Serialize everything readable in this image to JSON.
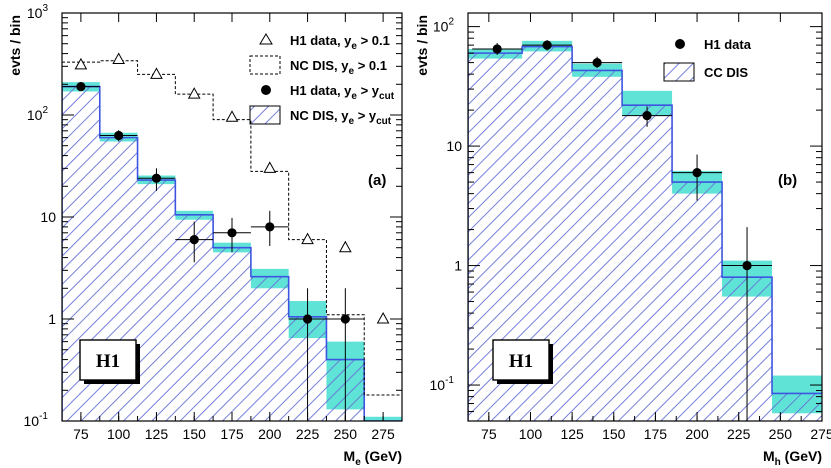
{
  "chart_data": [
    {
      "type": "histogram",
      "panel_label": "(a)",
      "badge": "H1",
      "xlabel": "M",
      "xlabel_sub": "e",
      "xlabel_unit": " (GeV)",
      "ylabel": "evts / bin",
      "xlim": [
        62.5,
        287.5
      ],
      "ylim": [
        0.1,
        1000
      ],
      "yscale": "log",
      "x_ticks": [
        75,
        100,
        125,
        150,
        175,
        200,
        225,
        250,
        275
      ],
      "y_tick_labels": [
        {
          "value": 1000,
          "base": "10",
          "exp": "3"
        },
        {
          "value": 100,
          "base": "10",
          "exp": "2"
        },
        {
          "value": 10,
          "base": "10",
          "exp": ""
        },
        {
          "value": 1,
          "base": "1",
          "exp": ""
        },
        {
          "value": 0.1,
          "base": "10",
          "exp": "-1"
        }
      ],
      "bin_edges": [
        62.5,
        87.5,
        112.5,
        137.5,
        162.5,
        187.5,
        212.5,
        237.5,
        262.5,
        287.5
      ],
      "nc_dis_ycut": [
        190,
        60,
        23,
        10.5,
        5,
        2.6,
        1.05,
        0.4,
        0.1
      ],
      "nc_dis_ycut_band": [
        [
          170,
          210
        ],
        [
          55,
          67
        ],
        [
          21,
          25.5
        ],
        [
          9.4,
          11.5
        ],
        [
          4.5,
          5.6
        ],
        [
          2.0,
          3.1
        ],
        [
          0.65,
          1.5
        ],
        [
          0.13,
          0.6
        ],
        [
          0.09,
          0.11
        ]
      ],
      "nc_dis_ye01": [
        330,
        340,
        250,
        160,
        90,
        28,
        6,
        1.1,
        0.18
      ],
      "h1_data_ye01": {
        "x": [
          75,
          100,
          125,
          150,
          175,
          200,
          225,
          250,
          275
        ],
        "y": [
          310,
          350,
          250,
          160,
          95,
          30,
          6,
          5,
          1
        ]
      },
      "h1_data_ycut": {
        "x": [
          75,
          100,
          125,
          150,
          175,
          200,
          225,
          250
        ],
        "y": [
          190,
          63,
          24,
          6,
          7,
          8,
          1,
          1
        ],
        "y_low": [
          175,
          55,
          18,
          3.6,
          4.5,
          5.2,
          0.1,
          0.1
        ],
        "y_high": [
          210,
          71,
          30,
          9,
          9.8,
          11.5,
          2,
          2
        ],
        "x_err": [
          12.5,
          12.5,
          12.5,
          12.5,
          12.5,
          12.5,
          12.5,
          12.5
        ]
      },
      "legend": [
        {
          "marker": "open-triangle",
          "text": "H1 data, y",
          "sub": "e",
          "rest": " > 0.1"
        },
        {
          "marker": "dashed-box",
          "text": "NC DIS, y",
          "sub": "e",
          "rest": " > 0.1"
        },
        {
          "marker": "filled-circle",
          "text": "H1 data, y",
          "sub": "e",
          "rest": " > y",
          "sub2": "cut"
        },
        {
          "marker": "hatched-box",
          "text": "NC DIS, y",
          "sub": "e",
          "rest": " > y",
          "sub2": "cut"
        }
      ]
    },
    {
      "type": "histogram",
      "panel_label": "(b)",
      "badge": "H1",
      "xlabel": "M",
      "xlabel_sub": "h",
      "xlabel_unit": " (GeV)",
      "ylabel": "evts / bin",
      "xlim": [
        62.5,
        275
      ],
      "ylim": [
        0.05,
        130
      ],
      "yscale": "log",
      "x_ticks": [
        75,
        100,
        125,
        150,
        175,
        200,
        225,
        250,
        275
      ],
      "y_tick_labels": [
        {
          "value": 100,
          "base": "10",
          "exp": "2"
        },
        {
          "value": 10,
          "base": "10",
          "exp": ""
        },
        {
          "value": 1,
          "base": "1",
          "exp": ""
        },
        {
          "value": 0.1,
          "base": "10",
          "exp": "-1"
        }
      ],
      "bin_edges": [
        62.5,
        95,
        125,
        155,
        185,
        215,
        245,
        275
      ],
      "cc_dis": [
        60,
        68,
        43,
        22,
        5,
        0.8,
        0.085
      ],
      "cc_dis_band": [
        [
          54,
          65
        ],
        [
          62,
          76
        ],
        [
          38,
          49
        ],
        [
          18,
          29
        ],
        [
          4.0,
          6.2
        ],
        [
          0.55,
          1.1
        ],
        [
          0.058,
          0.12
        ]
      ],
      "h1_data": {
        "x": [
          80,
          110,
          140,
          170,
          200,
          230
        ],
        "y": [
          65,
          70,
          50,
          18,
          6,
          1
        ],
        "y_low": [
          58,
          63,
          45,
          14.5,
          3.5,
          0.05
        ],
        "y_high": [
          73,
          77,
          56,
          21.5,
          8.5,
          2.1
        ],
        "x_err": [
          15,
          15,
          15,
          15,
          15,
          15
        ]
      },
      "legend": [
        {
          "marker": "filled-circle",
          "text": "H1 data"
        },
        {
          "marker": "hatched-box",
          "text": "CC DIS"
        }
      ]
    }
  ]
}
